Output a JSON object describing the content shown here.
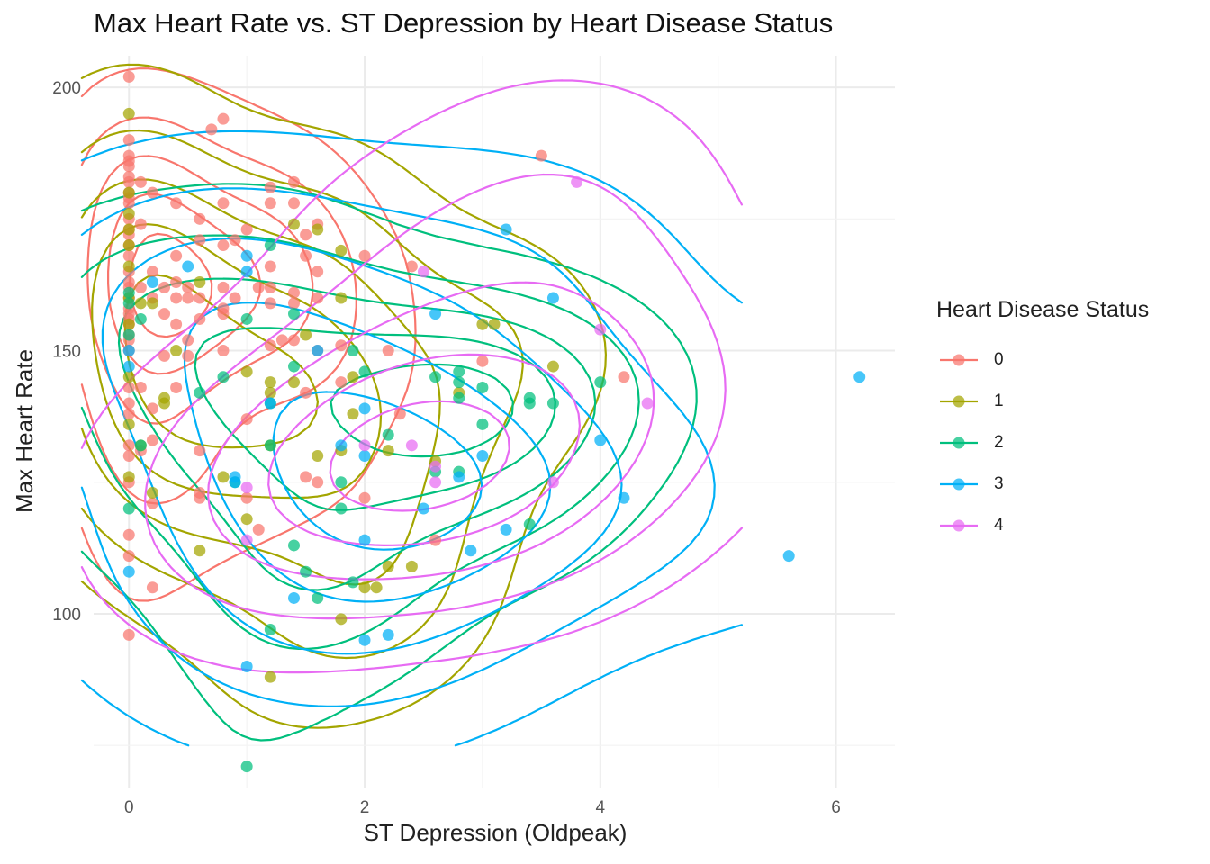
{
  "chart_data": {
    "type": "scatter",
    "title": "Max Heart Rate vs. ST Depression by Heart Disease Status",
    "xlabel": "ST Depression (Oldpeak)",
    "ylabel": "Max Heart Rate",
    "xlim": [
      -0.3,
      6.5
    ],
    "ylim": [
      67,
      206
    ],
    "x_ticks": [
      0,
      2,
      4,
      6
    ],
    "y_ticks": [
      100,
      150,
      200
    ],
    "grid": true,
    "legend_title": "Heart Disease Status",
    "legend_position": "right",
    "series": [
      {
        "name": "0",
        "color": "#F8766D",
        "points": [
          [
            0,
            202
          ],
          [
            0,
            190
          ],
          [
            0,
            187
          ],
          [
            0,
            186
          ],
          [
            0,
            185
          ],
          [
            0,
            183
          ],
          [
            0,
            182
          ],
          [
            0,
            180
          ],
          [
            0,
            179
          ],
          [
            0,
            178
          ],
          [
            0,
            175
          ],
          [
            0,
            173
          ],
          [
            0,
            172
          ],
          [
            0,
            170
          ],
          [
            0,
            168
          ],
          [
            0,
            165
          ],
          [
            0,
            163
          ],
          [
            0,
            162
          ],
          [
            0,
            160
          ],
          [
            0,
            158
          ],
          [
            0,
            157
          ],
          [
            0,
            156
          ],
          [
            0,
            155
          ],
          [
            0,
            153
          ],
          [
            0,
            152
          ],
          [
            0,
            150
          ],
          [
            0,
            143
          ],
          [
            0,
            140
          ],
          [
            0,
            138
          ],
          [
            0,
            132
          ],
          [
            0,
            130
          ],
          [
            0,
            125
          ],
          [
            0,
            115
          ],
          [
            0,
            111
          ],
          [
            0,
            96
          ],
          [
            0.1,
            182
          ],
          [
            0.1,
            174
          ],
          [
            0.1,
            162
          ],
          [
            0.1,
            143
          ],
          [
            0.1,
            131
          ],
          [
            0.2,
            180
          ],
          [
            0.2,
            165
          ],
          [
            0.2,
            160
          ],
          [
            0.2,
            139
          ],
          [
            0.2,
            133
          ],
          [
            0.2,
            121
          ],
          [
            0.2,
            105
          ],
          [
            0.3,
            162
          ],
          [
            0.3,
            157
          ],
          [
            0.3,
            149
          ],
          [
            0.4,
            178
          ],
          [
            0.4,
            168
          ],
          [
            0.4,
            163
          ],
          [
            0.4,
            160
          ],
          [
            0.4,
            155
          ],
          [
            0.4,
            143
          ],
          [
            0.5,
            162
          ],
          [
            0.5,
            160
          ],
          [
            0.5,
            152
          ],
          [
            0.5,
            149
          ],
          [
            0.6,
            175
          ],
          [
            0.6,
            171
          ],
          [
            0.6,
            160
          ],
          [
            0.6,
            156
          ],
          [
            0.6,
            131
          ],
          [
            0.6,
            123
          ],
          [
            0.6,
            122
          ],
          [
            0.7,
            192
          ],
          [
            0.8,
            194
          ],
          [
            0.8,
            178
          ],
          [
            0.8,
            170
          ],
          [
            0.8,
            162
          ],
          [
            0.8,
            158
          ],
          [
            0.8,
            157
          ],
          [
            0.8,
            150
          ],
          [
            0.9,
            171
          ],
          [
            0.9,
            160
          ],
          [
            1.0,
            173
          ],
          [
            1.0,
            137
          ],
          [
            1.0,
            122
          ],
          [
            1.1,
            162
          ],
          [
            1.1,
            116
          ],
          [
            1.2,
            181
          ],
          [
            1.2,
            178
          ],
          [
            1.2,
            166
          ],
          [
            1.2,
            162
          ],
          [
            1.2,
            159
          ],
          [
            1.2,
            151
          ],
          [
            1.3,
            152
          ],
          [
            1.4,
            182
          ],
          [
            1.4,
            178
          ],
          [
            1.4,
            161
          ],
          [
            1.4,
            159
          ],
          [
            1.4,
            152
          ],
          [
            1.5,
            172
          ],
          [
            1.5,
            168
          ],
          [
            1.5,
            142
          ],
          [
            1.5,
            126
          ],
          [
            1.6,
            174
          ],
          [
            1.6,
            165
          ],
          [
            1.6,
            160
          ],
          [
            1.6,
            150
          ],
          [
            1.6,
            125
          ],
          [
            1.8,
            151
          ],
          [
            1.8,
            144
          ],
          [
            2.0,
            168
          ],
          [
            2.0,
            122
          ],
          [
            2.2,
            150
          ],
          [
            2.3,
            138
          ],
          [
            2.4,
            166
          ],
          [
            2.6,
            114
          ],
          [
            3.0,
            148
          ],
          [
            3.5,
            187
          ],
          [
            4.2,
            145
          ]
        ]
      },
      {
        "name": "1",
        "color": "#A3A500",
        "points": [
          [
            0,
            195
          ],
          [
            0,
            180
          ],
          [
            0,
            176
          ],
          [
            0,
            173
          ],
          [
            0,
            170
          ],
          [
            0,
            166
          ],
          [
            0,
            160
          ],
          [
            0,
            155
          ],
          [
            0,
            145
          ],
          [
            0,
            136
          ],
          [
            0,
            126
          ],
          [
            0.1,
            159
          ],
          [
            0.1,
            132
          ],
          [
            0.2,
            159
          ],
          [
            0.2,
            123
          ],
          [
            0.3,
            141
          ],
          [
            0.3,
            140
          ],
          [
            0.4,
            150
          ],
          [
            0.6,
            163
          ],
          [
            0.6,
            112
          ],
          [
            0.8,
            126
          ],
          [
            1.0,
            146
          ],
          [
            1.0,
            118
          ],
          [
            1.2,
            144
          ],
          [
            1.2,
            142
          ],
          [
            1.2,
            132
          ],
          [
            1.2,
            88
          ],
          [
            1.4,
            174
          ],
          [
            1.4,
            144
          ],
          [
            1.5,
            153
          ],
          [
            1.6,
            173
          ],
          [
            1.6,
            130
          ],
          [
            1.8,
            169
          ],
          [
            1.8,
            160
          ],
          [
            1.8,
            131
          ],
          [
            1.8,
            99
          ],
          [
            1.9,
            145
          ],
          [
            1.9,
            138
          ],
          [
            2.0,
            105
          ],
          [
            2.1,
            105
          ],
          [
            2.2,
            131
          ],
          [
            2.2,
            109
          ],
          [
            2.4,
            109
          ],
          [
            2.6,
            129
          ],
          [
            2.8,
            142
          ],
          [
            3.0,
            155
          ],
          [
            3.1,
            155
          ],
          [
            3.6,
            147
          ]
        ]
      },
      {
        "name": "2",
        "color": "#00BF7D",
        "points": [
          [
            0,
            161
          ],
          [
            0,
            159
          ],
          [
            0,
            153
          ],
          [
            0,
            120
          ],
          [
            0.1,
            156
          ],
          [
            0.1,
            132
          ],
          [
            0.6,
            142
          ],
          [
            0.8,
            145
          ],
          [
            0.9,
            125
          ],
          [
            1.0,
            156
          ],
          [
            1.0,
            71
          ],
          [
            1.2,
            170
          ],
          [
            1.2,
            140
          ],
          [
            1.2,
            132
          ],
          [
            1.2,
            97
          ],
          [
            1.4,
            157
          ],
          [
            1.4,
            147
          ],
          [
            1.4,
            113
          ],
          [
            1.5,
            108
          ],
          [
            1.6,
            103
          ],
          [
            1.8,
            125
          ],
          [
            1.8,
            120
          ],
          [
            1.9,
            150
          ],
          [
            1.9,
            106
          ],
          [
            2.0,
            146
          ],
          [
            2.2,
            134
          ],
          [
            2.6,
            145
          ],
          [
            2.6,
            127
          ],
          [
            2.8,
            146
          ],
          [
            2.8,
            144
          ],
          [
            2.8,
            141
          ],
          [
            2.8,
            127
          ],
          [
            3.0,
            143
          ],
          [
            3.0,
            136
          ],
          [
            3.4,
            141
          ],
          [
            3.4,
            140
          ],
          [
            3.4,
            117
          ],
          [
            3.6,
            140
          ],
          [
            4.0,
            144
          ]
        ]
      },
      {
        "name": "3",
        "color": "#00B0F6",
        "points": [
          [
            0,
            150
          ],
          [
            0,
            147
          ],
          [
            0,
            108
          ],
          [
            0.2,
            163
          ],
          [
            0.5,
            166
          ],
          [
            0.9,
            126
          ],
          [
            0.9,
            125
          ],
          [
            1.0,
            168
          ],
          [
            1.0,
            165
          ],
          [
            1.0,
            90
          ],
          [
            1.2,
            140
          ],
          [
            1.4,
            103
          ],
          [
            1.6,
            150
          ],
          [
            1.8,
            132
          ],
          [
            2.0,
            139
          ],
          [
            2.0,
            130
          ],
          [
            2.0,
            114
          ],
          [
            2.0,
            95
          ],
          [
            2.2,
            96
          ],
          [
            2.5,
            120
          ],
          [
            2.6,
            157
          ],
          [
            2.8,
            126
          ],
          [
            2.9,
            112
          ],
          [
            3.0,
            130
          ],
          [
            3.2,
            173
          ],
          [
            3.2,
            116
          ],
          [
            3.6,
            160
          ],
          [
            4.0,
            133
          ],
          [
            4.2,
            122
          ],
          [
            5.6,
            111
          ],
          [
            6.2,
            145
          ]
        ]
      },
      {
        "name": "4",
        "color": "#E76BF3",
        "points": [
          [
            1.0,
            124
          ],
          [
            1.0,
            114
          ],
          [
            2.0,
            132
          ],
          [
            2.4,
            132
          ],
          [
            2.5,
            165
          ],
          [
            2.6,
            128
          ],
          [
            2.6,
            125
          ],
          [
            3.6,
            125
          ],
          [
            3.8,
            182
          ],
          [
            4.0,
            154
          ],
          [
            4.4,
            140
          ]
        ]
      }
    ]
  }
}
